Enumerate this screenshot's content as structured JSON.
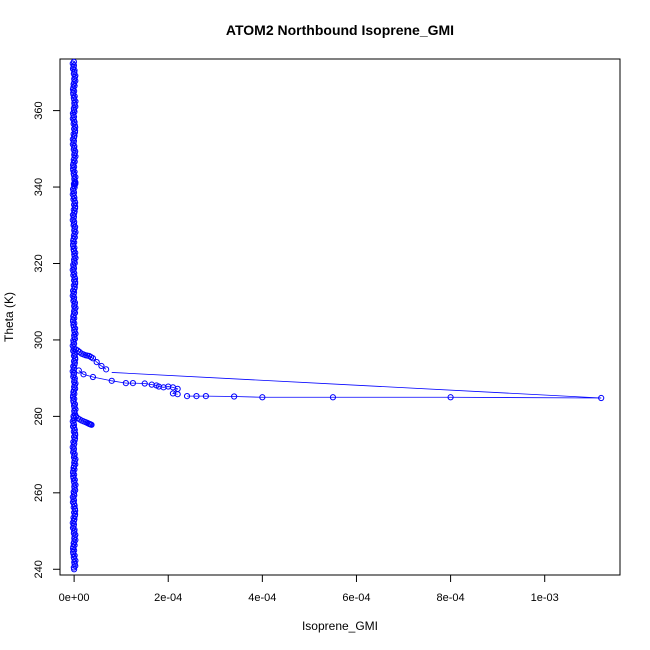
{
  "chart_data": {
    "type": "scatter",
    "title": "ATOM2 Northbound Isoprene_GMI",
    "xlabel": "Isoprene_GMI",
    "ylabel": "Theta (K)",
    "xlim": [
      -3e-05,
      0.00116
    ],
    "ylim": [
      238.5,
      373.5
    ],
    "x_ticks": [
      0,
      0.0002,
      0.0004,
      0.0006,
      0.0008,
      0.001
    ],
    "x_tick_labels": [
      "0e+00",
      "2e-04",
      "4e-04",
      "6e-04",
      "8e-04",
      "1e-03"
    ],
    "y_ticks": [
      240,
      260,
      280,
      300,
      320,
      340,
      360
    ],
    "y_tick_labels": [
      "240",
      "260",
      "280",
      "300",
      "320",
      "340",
      "360"
    ],
    "grid": false,
    "legend": "none",
    "series_color": "#0000ff",
    "dense_column": {
      "x_center": 0.0,
      "x_spread": 3e-06,
      "theta_range": [
        240,
        373
      ],
      "theta_step": 0.45
    },
    "branch_upper": {
      "x": [
        4e-06,
        8e-06,
        1.2e-05,
        1.6e-05,
        2e-05,
        2.4e-05,
        2.8e-05,
        3.2e-05,
        3.6e-05,
        4e-05,
        4.8e-05,
        5.8e-05,
        6.8e-05
      ],
      "y": [
        297.5,
        297.2,
        296.8,
        296.4,
        296.2,
        296.0,
        295.9,
        295.8,
        295.5,
        295.2,
        294.2,
        293.2,
        292.3
      ]
    },
    "branch_mid": {
      "x": [
        1e-05,
        2e-05,
        4e-05,
        8e-05,
        0.00011,
        0.000125,
        0.00015,
        0.000165,
        0.000175,
        0.00018,
        0.00019,
        0.0002,
        0.00021,
        0.00022,
        0.00021,
        0.00022
      ],
      "y": [
        292.0,
        291.0,
        290.3,
        289.3,
        288.7,
        288.7,
        288.6,
        288.3,
        288.1,
        287.8,
        287.6,
        287.8,
        287.6,
        287.2,
        286.0,
        285.8
      ]
    },
    "branch_low": {
      "x": [
        0.00024,
        0.00026,
        0.00028,
        0.00034,
        0.0004,
        0.00055,
        0.0008,
        0.00112
      ],
      "y": [
        285.3,
        285.3,
        285.3,
        285.2,
        285.0,
        285.0,
        285.0,
        284.8
      ]
    },
    "long_line": {
      "x": [
        8e-05,
        0.00112
      ],
      "y": [
        291.5,
        284.8
      ]
    },
    "branch_lower": {
      "x": [
        4e-06,
        8e-06,
        1.2e-05,
        1.6e-05,
        2e-05,
        2.4e-05,
        2.8e-05,
        3.1e-05,
        3.3e-05,
        3.5e-05,
        3.7e-05
      ],
      "y": [
        280.0,
        279.5,
        279.2,
        278.9,
        278.7,
        278.5,
        278.3,
        278.1,
        278.0,
        277.9,
        277.8
      ]
    },
    "blob": {
      "x": [
        1.5e-06,
        2e-06,
        2.5e-06
      ],
      "y": [
        341.0,
        341.3,
        340.8
      ]
    }
  }
}
